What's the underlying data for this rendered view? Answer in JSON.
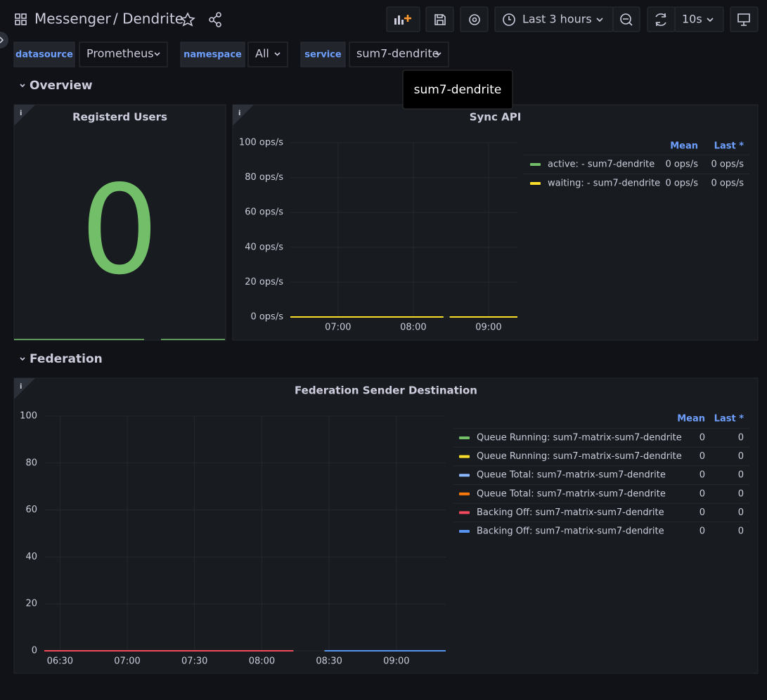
{
  "header": {
    "title": "Messenger",
    "subtitle": "/ Dendrite",
    "time_range": "Last 3 hours",
    "refresh": "10s"
  },
  "variables": [
    {
      "label": "datasource",
      "value": "Prometheus"
    },
    {
      "label": "namespace",
      "value": "All"
    },
    {
      "label": "service",
      "value": "sum7-dendrite"
    }
  ],
  "tooltip": "sum7-dendrite",
  "rows": [
    "Overview",
    "Federation"
  ],
  "panels": [
    {
      "title": "Registerd Users",
      "value": 0,
      "color": "#73bf69"
    },
    {
      "title": "Sync API",
      "chart_data": {
        "type": "line",
        "x": [
          "06:22",
          "08:24",
          "08:26",
          "08:29",
          "09:23"
        ],
        "xlim": [
          "06:22",
          "09:23"
        ],
        "xticks": [
          "07:00",
          "08:00",
          "09:00"
        ],
        "ylim": [
          0,
          100
        ],
        "yticks": [
          {
            "value": 0,
            "label": "0 ops/s"
          },
          {
            "value": 20,
            "label": "20 ops/s"
          },
          {
            "value": 40,
            "label": "40 ops/s"
          },
          {
            "value": 60,
            "label": "60 ops/s"
          },
          {
            "value": 80,
            "label": "80 ops/s"
          },
          {
            "value": 100,
            "label": "100 ops/s"
          }
        ],
        "grid": true,
        "legend_columns": [
          "Mean",
          "Last *"
        ],
        "series": [
          {
            "name": "active: - sum7-dendrite",
            "color": "#73bf69",
            "values": [
              0,
              0,
              null,
              0,
              0
            ],
            "stats": [
              "0 ops/s",
              "0 ops/s"
            ]
          },
          {
            "name": "waiting: - sum7-dendrite",
            "color": "#fade2a",
            "values": [
              0,
              0,
              null,
              0,
              0
            ],
            "stats": [
              "0 ops/s",
              "0 ops/s"
            ]
          }
        ]
      }
    },
    {
      "title": "Federation Sender Destination",
      "chart_data": {
        "type": "line",
        "x": [
          "06:23",
          "08:14",
          "08:21",
          "08:28",
          "09:22"
        ],
        "xlim": [
          "06:23",
          "09:22"
        ],
        "xticks": [
          "06:30",
          "07:00",
          "07:30",
          "08:00",
          "08:30",
          "09:00"
        ],
        "ylim": [
          0,
          100
        ],
        "yticks": [
          0,
          20,
          40,
          60,
          80,
          100
        ],
        "grid": true,
        "legend_columns": [
          "Mean",
          "Last *"
        ],
        "series": [
          {
            "name": "Queue Running: sum7-matrix-sum7-dendrite",
            "color": "#73bf69",
            "values": [
              0,
              0,
              null,
              0,
              0
            ],
            "stats": [
              0,
              0
            ]
          },
          {
            "name": "Queue Running: sum7-matrix-sum7-dendrite",
            "color": "#fade2a",
            "values": [
              0,
              0,
              null,
              0,
              0
            ],
            "stats": [
              0,
              0
            ]
          },
          {
            "name": "Queue Total: sum7-matrix-sum7-dendrite",
            "color": "#8ab8ff",
            "values": [
              0,
              0,
              null,
              0,
              0
            ],
            "stats": [
              0,
              0
            ]
          },
          {
            "name": "Queue Total: sum7-matrix-sum7-dendrite",
            "color": "#ff780a",
            "values": [
              0,
              0,
              null,
              0,
              0
            ],
            "stats": [
              0,
              0
            ]
          },
          {
            "name": "Backing Off: sum7-matrix-sum7-dendrite",
            "color": "#f2495c",
            "values": [
              0,
              0,
              null,
              null,
              null
            ],
            "stats": [
              0,
              0
            ]
          },
          {
            "name": "Backing Off: sum7-matrix-sum7-dendrite",
            "color": "#5794f2",
            "values": [
              null,
              null,
              null,
              0,
              0
            ],
            "stats": [
              0,
              0
            ]
          }
        ]
      }
    }
  ]
}
